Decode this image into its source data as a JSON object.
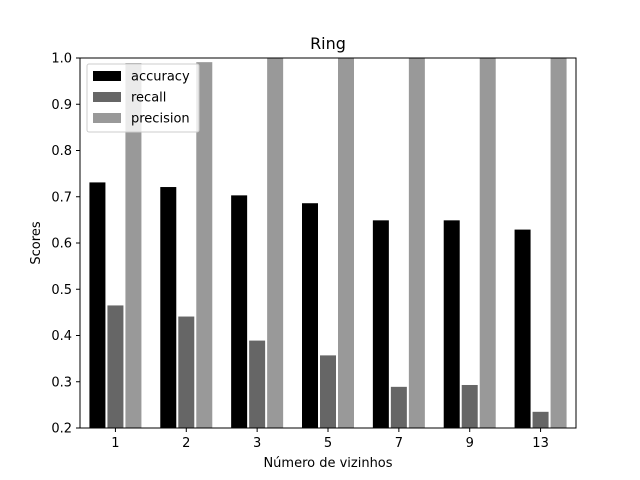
{
  "chart_data": {
    "type": "bar",
    "title": "Ring",
    "xlabel": "Número de vizinhos",
    "ylabel": "Scores",
    "categories": [
      "1",
      "2",
      "3",
      "5",
      "7",
      "9",
      "13"
    ],
    "ylim": [
      0.2,
      1.0
    ],
    "yticks": [
      "0.2",
      "0.3",
      "0.4",
      "0.5",
      "0.6",
      "0.7",
      "0.8",
      "0.9",
      "1.0"
    ],
    "grid": false,
    "legend_position": "top-left",
    "series": [
      {
        "name": "accuracy",
        "color": "#000000",
        "values": [
          0.731,
          0.721,
          0.703,
          0.686,
          0.649,
          0.649,
          0.629
        ]
      },
      {
        "name": "recall",
        "color": "#666666",
        "values": [
          0.465,
          0.441,
          0.389,
          0.357,
          0.289,
          0.293,
          0.235
        ]
      },
      {
        "name": "precision",
        "color": "#999999",
        "values": [
          0.989,
          0.991,
          1.0,
          1.0,
          1.0,
          1.0,
          1.0
        ]
      }
    ]
  }
}
